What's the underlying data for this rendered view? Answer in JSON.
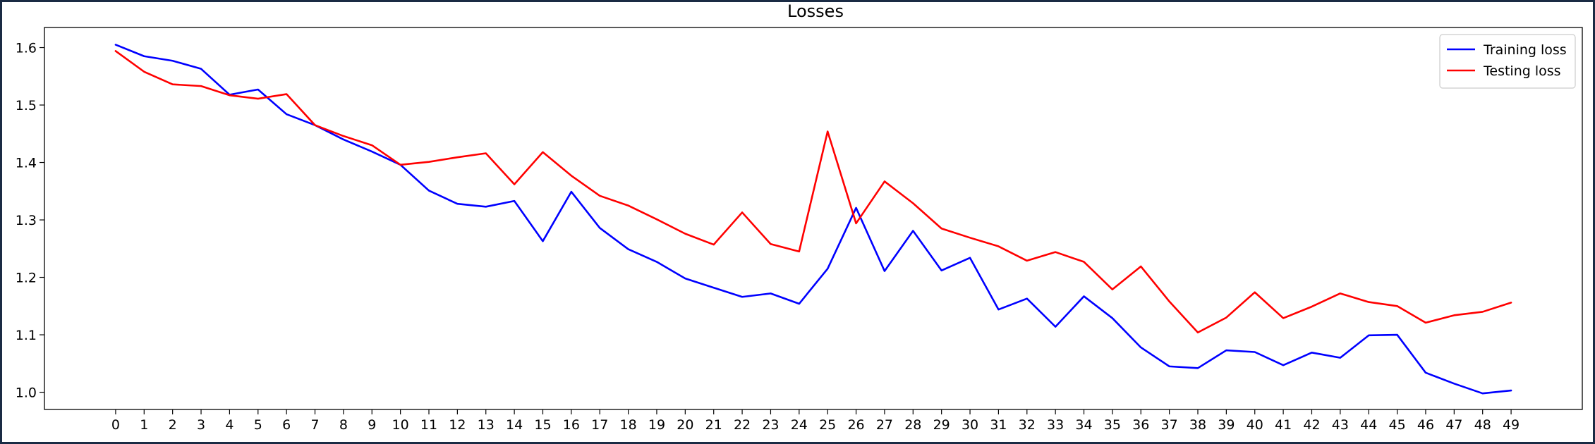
{
  "chart_data": {
    "type": "line",
    "title": "Losses",
    "xlabel": "",
    "ylabel": "",
    "x": [
      0,
      1,
      2,
      3,
      4,
      5,
      6,
      7,
      8,
      9,
      10,
      11,
      12,
      13,
      14,
      15,
      16,
      17,
      18,
      19,
      20,
      21,
      22,
      23,
      24,
      25,
      26,
      27,
      28,
      29,
      30,
      31,
      32,
      33,
      34,
      35,
      36,
      37,
      38,
      39,
      40,
      41,
      42,
      43,
      44,
      45,
      46,
      47,
      48,
      49
    ],
    "xlim": [
      -2.5,
      51.5
    ],
    "ylim": [
      0.97,
      1.635
    ],
    "yticks": [
      1.0,
      1.1,
      1.2,
      1.3,
      1.4,
      1.5,
      1.6
    ],
    "grid": false,
    "legend_position": "top-right",
    "series": [
      {
        "name": "Training loss",
        "color": "#0000ff",
        "values": [
          1.605,
          1.585,
          1.577,
          1.563,
          1.518,
          1.527,
          1.484,
          1.465,
          1.44,
          1.419,
          1.396,
          1.351,
          1.328,
          1.323,
          1.333,
          1.263,
          1.349,
          1.286,
          1.249,
          1.227,
          1.198,
          1.182,
          1.166,
          1.172,
          1.154,
          1.215,
          1.321,
          1.211,
          1.281,
          1.212,
          1.234,
          1.144,
          1.163,
          1.114,
          1.167,
          1.129,
          1.078,
          1.045,
          1.042,
          1.073,
          1.07,
          1.047,
          1.069,
          1.06,
          1.099,
          1.1,
          1.034,
          1.015,
          0.998,
          1.003
        ]
      },
      {
        "name": "Testing loss",
        "color": "#ff0000",
        "values": [
          1.594,
          1.558,
          1.536,
          1.533,
          1.517,
          1.511,
          1.519,
          1.465,
          1.446,
          1.43,
          1.396,
          1.401,
          1.409,
          1.416,
          1.362,
          1.418,
          1.377,
          1.342,
          1.325,
          1.301,
          1.276,
          1.257,
          1.313,
          1.258,
          1.245,
          1.454,
          1.294,
          1.367,
          1.329,
          1.285,
          1.269,
          1.254,
          1.229,
          1.244,
          1.227,
          1.179,
          1.219,
          1.158,
          1.104,
          1.13,
          1.174,
          1.129,
          1.149,
          1.172,
          1.157,
          1.15,
          1.121,
          1.134,
          1.14,
          1.156
        ]
      }
    ]
  }
}
